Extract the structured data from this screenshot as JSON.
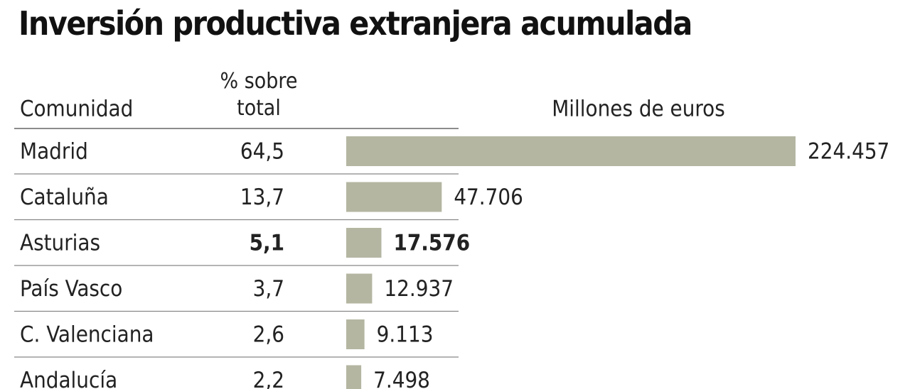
{
  "chart_data": {
    "type": "bar",
    "title": "Inversión productiva extranjera acumulada",
    "category_header": "Comunidad",
    "share_header": "% sobre total",
    "value_header": "Millones de euros",
    "categories": [
      "Madrid",
      "Cataluña",
      "Asturias",
      "País Vasco",
      "C. Valenciana",
      "Andalucía"
    ],
    "share": {
      "values": [
        64.5,
        13.7,
        5.1,
        3.7,
        2.6,
        2.2
      ],
      "value_labels": [
        "64,5",
        "13,7",
        "5,1",
        "3,7",
        "2,6",
        "2,2"
      ]
    },
    "values": [
      224457,
      47706,
      17576,
      12937,
      9113,
      7498
    ],
    "value_labels": [
      "224.457",
      "47.706",
      "17.576",
      "12.937",
      "9.113",
      "7.498"
    ],
    "color": "#b4b6a2",
    "highlight": 2
  }
}
